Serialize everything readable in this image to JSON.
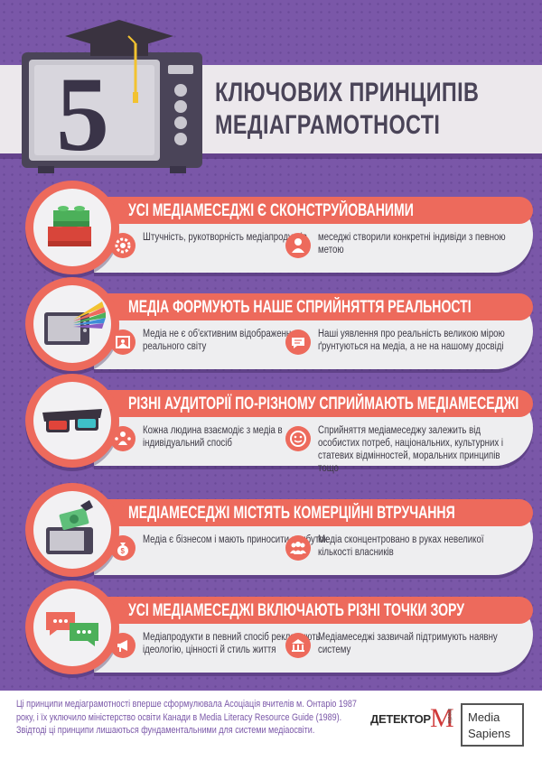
{
  "header": {
    "number": "5",
    "title_line1": "КЛЮЧОВИХ ПРИНЦИПІВ",
    "title_line2": "МЕДІАГРАМОТНОСТІ"
  },
  "colors": {
    "background": "#7a57a8",
    "accent": "#ed6a5c",
    "panel": "#eeeef0",
    "text": "#3d3a45"
  },
  "principles": [
    {
      "icon": "lego-bricks-icon",
      "heading": "УСІ МЕДІАМЕСЕДЖІ Є СКОНСТРУЙОВАНИМИ",
      "points": [
        {
          "icon": "gear-icon",
          "text": "Штучність, рукотворність медіапродуктів"
        },
        {
          "icon": "person-icon",
          "text": "меседжі створили конкретні індивіди з певною метою"
        }
      ]
    },
    {
      "icon": "tv-rainbow-icon",
      "heading": "МЕДІА ФОРМУЮТЬ НАШЕ СПРИЙНЯТТЯ РЕАЛЬНОСТІ",
      "points": [
        {
          "icon": "image-frame-icon",
          "text": "Медіа не є об'єктивним відображенням реального світу"
        },
        {
          "icon": "speech-bubble-icon",
          "text": "Наші уявлення про реальність великою мірою ґрунтуються на медіа, а не на нашому досвіді"
        }
      ]
    },
    {
      "icon": "3d-glasses-icon",
      "heading": "РІЗНІ АУДИТОРІЇ ПО-РІЗНОМУ СПРИЙМАЮТЬ МЕДІАМЕСЕДЖІ",
      "points": [
        {
          "icon": "people-icon",
          "text": "Кожна людина взаємодіє з медіа в індивідуальний спосіб"
        },
        {
          "icon": "smiley-icon",
          "text": "Сприйняття медіамеседжу залежить від особистих потреб, національних, культурних і статевих відмінностей, моральних принципів тощо"
        }
      ]
    },
    {
      "icon": "money-tv-icon",
      "heading": "МЕДІАМЕСЕДЖІ МІСТЯТЬ КОМЕРЦІЙНІ ВТРУЧАННЯ",
      "points": [
        {
          "icon": "money-bag-icon",
          "text": "Медіа є бізнесом і мають приносити прибуток"
        },
        {
          "icon": "group-icon",
          "text": "Медіа сконцентровано в руках невеликої кількості власників"
        }
      ]
    },
    {
      "icon": "chat-bubbles-icon",
      "heading": "УСІ МЕДІАМЕСЕДЖІ ВКЛЮЧАЮТЬ РІЗНІ ТОЧКИ ЗОРУ",
      "points": [
        {
          "icon": "megaphone-icon",
          "text": "Медіапродукти в певний спосіб рекламують ідеологію, цінності й стиль життя"
        },
        {
          "icon": "building-icon",
          "text": "Медіамеседжі зазвичай підтримують наявну систему"
        }
      ]
    }
  ],
  "footer": {
    "text": "Ці принципи медіаграмотності вперше сформулювала Асоціація вчителів м. Онтаріо 1987 року, і їх уключило міністерство освіти Канади в Media Literacy Resource Guide (1989). Звідтоді ці принципи лишаються фундаментальними для системи медіаосвіти.",
    "logo_detector": "ДЕТЕКТОР",
    "logo_detector_m": "M",
    "logo_detector_media": "media",
    "logo_sapiens_line1": "Media",
    "logo_sapiens_line2": "Sapiens"
  }
}
